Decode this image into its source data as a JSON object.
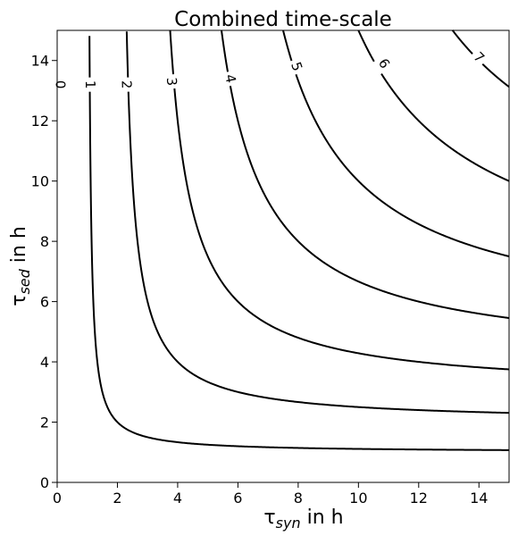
{
  "chart_data": {
    "type": "contour",
    "title": "Combined time-scale",
    "xlabel": {
      "symbol": "τ",
      "subscript": "syn",
      "suffix": " in h"
    },
    "ylabel": {
      "symbol": "τ",
      "subscript": "sed",
      "suffix": " in h"
    },
    "xlim": [
      0,
      15
    ],
    "ylim": [
      0,
      15
    ],
    "x_ticks": [
      0,
      2,
      4,
      6,
      8,
      10,
      12,
      14
    ],
    "y_ticks": [
      0,
      2,
      4,
      6,
      8,
      10,
      12,
      14
    ],
    "levels": [
      0,
      1,
      2,
      3,
      4,
      5,
      6,
      7
    ],
    "level_labels": [
      "0",
      "1",
      "2",
      "3",
      "4",
      "5",
      "6",
      "7"
    ],
    "level_label_positions": [
      {
        "level": 0,
        "x": 0.1,
        "y": 13.2
      },
      {
        "level": 1,
        "x": 1.1,
        "y": 13.2
      },
      {
        "level": 2,
        "x": 2.3,
        "y": 13.2
      },
      {
        "level": 3,
        "x": 3.8,
        "y": 13.3
      },
      {
        "level": 4,
        "x": 5.75,
        "y": 13.4
      },
      {
        "level": 5,
        "x": 7.95,
        "y": 13.8
      },
      {
        "level": 6,
        "x": 10.85,
        "y": 13.9
      },
      {
        "level": 7,
        "x": 14.0,
        "y": 14.1
      }
    ],
    "line_color": "#000000",
    "grid": false,
    "legend": "none"
  }
}
